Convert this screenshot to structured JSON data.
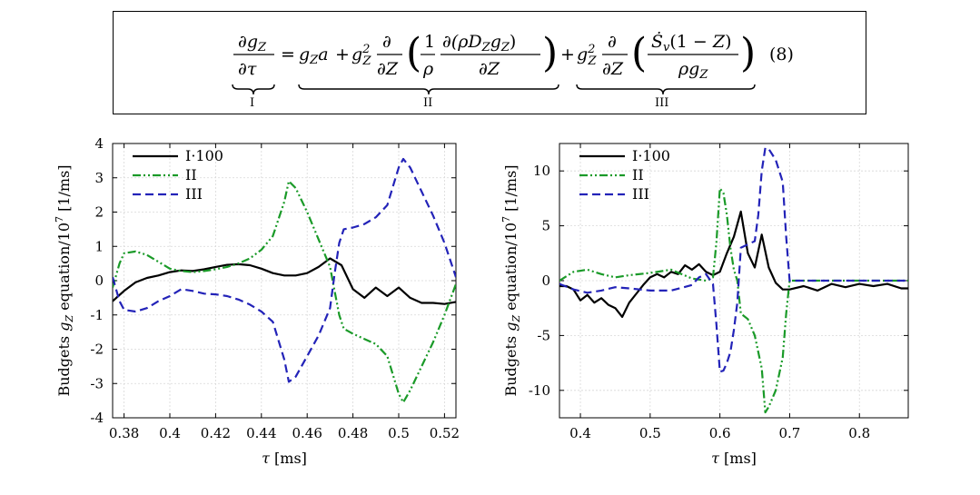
{
  "equation": {
    "lhs": "∂g_Z / ∂τ",
    "term_a": "g_Z a",
    "term_ii": "g_Z² ∂/∂Z ( (1/ρ) ∂(ρ D_Z g_Z)/∂Z )",
    "term_iii": "g_Z² ∂/∂Z ( Ṡ_v (1 − Z) / (ρ g_Z) )",
    "number": "(8)",
    "brace_labels": [
      "I",
      "II",
      "III"
    ]
  },
  "chart_data": [
    {
      "type": "line",
      "xlabel": "τ [ms]",
      "ylabel": "Budgets g_Z equation/10^7 [1/ms]",
      "xlim": [
        0.375,
        0.525
      ],
      "ylim": [
        -4,
        4
      ],
      "xticks": [
        0.38,
        0.4,
        0.42,
        0.44,
        0.46,
        0.48,
        0.5,
        0.52
      ],
      "xtick_labels": [
        "0.38",
        "0.4",
        "0.42",
        "0.44",
        "0.46",
        "0.48",
        "0.5",
        "0.52"
      ],
      "yticks": [
        -4,
        -3,
        -2,
        -1,
        0,
        1,
        2,
        3,
        4
      ],
      "ytick_labels": [
        "-4",
        "-3",
        "-2",
        "-1",
        "0",
        "1",
        "2",
        "3",
        "4"
      ],
      "grid": true,
      "legend": "top-left",
      "series": [
        {
          "name": "I·100",
          "color": "#000000",
          "dash": "solid",
          "x": [
            0.375,
            0.38,
            0.385,
            0.39,
            0.395,
            0.4,
            0.405,
            0.41,
            0.415,
            0.42,
            0.425,
            0.43,
            0.435,
            0.44,
            0.445,
            0.45,
            0.455,
            0.46,
            0.465,
            0.47,
            0.475,
            0.48,
            0.485,
            0.49,
            0.495,
            0.5,
            0.505,
            0.51,
            0.515,
            0.52,
            0.525
          ],
          "y": [
            -0.6,
            -0.3,
            -0.05,
            0.08,
            0.15,
            0.25,
            0.3,
            0.28,
            0.33,
            0.4,
            0.46,
            0.48,
            0.45,
            0.35,
            0.22,
            0.15,
            0.15,
            0.22,
            0.4,
            0.65,
            0.45,
            -0.25,
            -0.5,
            -0.2,
            -0.45,
            -0.2,
            -0.5,
            -0.65,
            -0.65,
            -0.68,
            -0.62
          ]
        },
        {
          "name": "II",
          "color": "#1a9a28",
          "dash": "dashdotdot",
          "x": [
            0.375,
            0.378,
            0.38,
            0.385,
            0.39,
            0.395,
            0.4,
            0.405,
            0.41,
            0.415,
            0.42,
            0.425,
            0.43,
            0.435,
            0.44,
            0.445,
            0.45,
            0.452,
            0.455,
            0.46,
            0.465,
            0.47,
            0.472,
            0.474,
            0.476,
            0.48,
            0.485,
            0.49,
            0.495,
            0.5,
            0.502,
            0.505,
            0.51,
            0.515,
            0.52,
            0.525
          ],
          "y": [
            -0.2,
            0.5,
            0.8,
            0.85,
            0.75,
            0.55,
            0.35,
            0.28,
            0.25,
            0.28,
            0.33,
            0.4,
            0.5,
            0.65,
            0.9,
            1.3,
            2.3,
            2.9,
            2.7,
            2.0,
            1.2,
            0.4,
            -0.3,
            -1.0,
            -1.4,
            -1.55,
            -1.7,
            -1.85,
            -2.2,
            -3.3,
            -3.55,
            -3.2,
            -2.5,
            -1.8,
            -1.0,
            -0.1
          ]
        },
        {
          "name": "III",
          "color": "#2323b8",
          "dash": "dashed",
          "x": [
            0.375,
            0.378,
            0.38,
            0.385,
            0.39,
            0.395,
            0.4,
            0.405,
            0.41,
            0.415,
            0.42,
            0.425,
            0.43,
            0.435,
            0.44,
            0.445,
            0.45,
            0.452,
            0.455,
            0.46,
            0.465,
            0.47,
            0.472,
            0.474,
            0.476,
            0.48,
            0.485,
            0.49,
            0.495,
            0.5,
            0.502,
            0.505,
            0.51,
            0.515,
            0.52,
            0.525
          ],
          "y": [
            0.1,
            -0.6,
            -0.85,
            -0.9,
            -0.8,
            -0.6,
            -0.45,
            -0.25,
            -0.3,
            -0.38,
            -0.4,
            -0.45,
            -0.55,
            -0.7,
            -0.9,
            -1.2,
            -2.3,
            -2.95,
            -2.8,
            -2.2,
            -1.6,
            -0.8,
            0.2,
            1.1,
            1.5,
            1.55,
            1.65,
            1.85,
            2.2,
            3.3,
            3.55,
            3.3,
            2.6,
            1.9,
            1.1,
            0.1
          ]
        }
      ]
    },
    {
      "type": "line",
      "xlabel": "τ [ms]",
      "ylabel": "Budgets g_Z equation/10^7 [1/ms]",
      "xlim": [
        0.37,
        0.87
      ],
      "ylim": [
        -12.5,
        12.5
      ],
      "xticks": [
        0.4,
        0.5,
        0.6,
        0.7,
        0.8
      ],
      "xtick_labels": [
        "0.4",
        "0.5",
        "0.6",
        "0.7",
        "0.8"
      ],
      "yticks": [
        -10,
        -5,
        0,
        5,
        10
      ],
      "ytick_labels": [
        "-10",
        "-5",
        "0",
        "5",
        "10"
      ],
      "grid": true,
      "legend": "top-left",
      "series": [
        {
          "name": "I·100",
          "color": "#000000",
          "dash": "solid",
          "x": [
            0.37,
            0.38,
            0.39,
            0.4,
            0.41,
            0.42,
            0.43,
            0.44,
            0.45,
            0.46,
            0.47,
            0.48,
            0.49,
            0.5,
            0.51,
            0.52,
            0.53,
            0.54,
            0.55,
            0.56,
            0.57,
            0.58,
            0.59,
            0.6,
            0.61,
            0.62,
            0.63,
            0.64,
            0.65,
            0.66,
            0.67,
            0.68,
            0.69,
            0.7,
            0.72,
            0.74,
            0.76,
            0.78,
            0.8,
            0.82,
            0.84,
            0.86,
            0.87
          ],
          "y": [
            -0.5,
            -0.5,
            -0.8,
            -1.8,
            -1.3,
            -2.0,
            -1.6,
            -2.2,
            -2.5,
            -3.3,
            -2.0,
            -1.2,
            -0.4,
            0.3,
            0.6,
            0.3,
            0.8,
            0.6,
            1.4,
            1.0,
            1.5,
            0.8,
            0.5,
            0.8,
            2.5,
            4.0,
            6.3,
            2.5,
            1.2,
            4.2,
            1.2,
            -0.2,
            -0.8,
            -0.8,
            -0.5,
            -0.9,
            -0.3,
            -0.6,
            -0.3,
            -0.5,
            -0.3,
            -0.7,
            -0.7
          ]
        },
        {
          "name": "II",
          "color": "#1a9a28",
          "dash": "dashdotdot",
          "x": [
            0.37,
            0.39,
            0.41,
            0.43,
            0.45,
            0.47,
            0.5,
            0.53,
            0.56,
            0.58,
            0.59,
            0.595,
            0.6,
            0.605,
            0.61,
            0.615,
            0.62,
            0.625,
            0.63,
            0.64,
            0.65,
            0.66,
            0.665,
            0.67,
            0.68,
            0.69,
            0.695,
            0.7,
            0.75,
            0.8,
            0.87
          ],
          "y": [
            0.0,
            0.8,
            1.0,
            0.6,
            0.3,
            0.5,
            0.7,
            1.0,
            0.2,
            0.0,
            0.3,
            3.5,
            8.4,
            8.0,
            6.0,
            3.0,
            1.0,
            0.0,
            -3.0,
            -3.5,
            -5.0,
            -8.0,
            -12.0,
            -11.5,
            -10.0,
            -7.0,
            -3.0,
            0.0,
            0.0,
            0.0,
            0.0
          ]
        },
        {
          "name": "III",
          "color": "#2323b8",
          "dash": "dashed",
          "x": [
            0.37,
            0.39,
            0.41,
            0.43,
            0.45,
            0.47,
            0.5,
            0.53,
            0.56,
            0.57,
            0.58,
            0.59,
            0.595,
            0.6,
            0.605,
            0.61,
            0.615,
            0.62,
            0.625,
            0.63,
            0.64,
            0.65,
            0.655,
            0.66,
            0.665,
            0.67,
            0.68,
            0.69,
            0.695,
            0.7,
            0.75,
            0.8,
            0.87
          ],
          "y": [
            -0.3,
            -0.8,
            -1.1,
            -0.9,
            -0.6,
            -0.7,
            -0.9,
            -0.9,
            -0.4,
            0.3,
            0.6,
            -0.3,
            -4.0,
            -8.3,
            -8.2,
            -7.5,
            -6.5,
            -4.5,
            -2.0,
            3.0,
            3.3,
            3.6,
            6.0,
            10.0,
            12.1,
            12.0,
            11.0,
            9.0,
            4.0,
            0.0,
            0.0,
            0.0,
            0.0
          ]
        }
      ]
    }
  ]
}
